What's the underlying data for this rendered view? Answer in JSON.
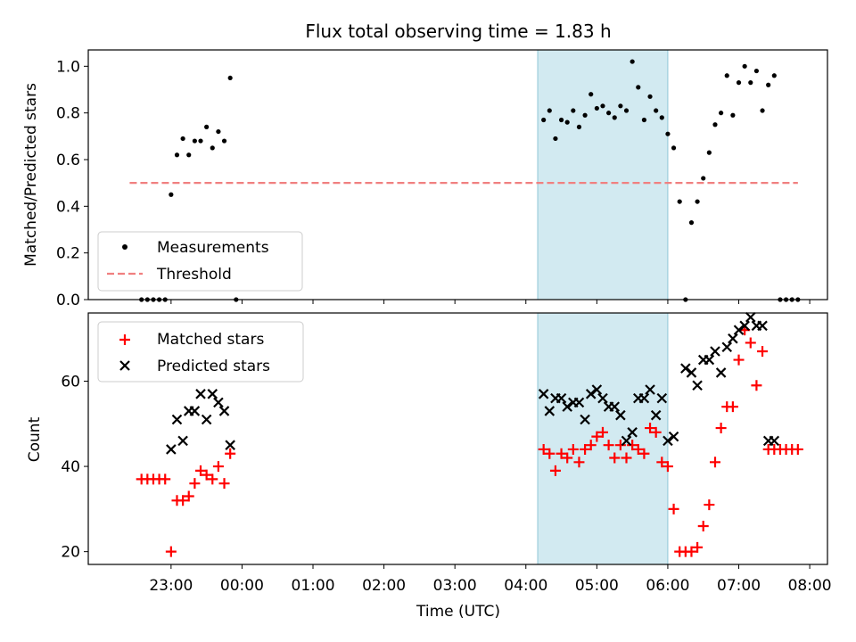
{
  "chart_data": [
    {
      "type": "scatter",
      "title": "Flux total observing time = 1.83 h",
      "ylabel": "Matched/Predicted stars",
      "xlabel": "",
      "ylim": [
        0,
        1.07
      ],
      "yticks": [
        0.0,
        0.2,
        0.4,
        0.6,
        0.8,
        1.0
      ],
      "ytick_labels": [
        "0.0",
        "0.2",
        "0.4",
        "0.6",
        "0.8",
        "1.0"
      ],
      "legend_position": "lower-left",
      "highlight_span": {
        "start": "04:10",
        "end": "06:00",
        "color": "#add8e6"
      },
      "threshold": {
        "name": "Threshold",
        "value": 0.5,
        "x_start": "22:25",
        "x_end": "07:50",
        "color": "#f08080",
        "style": "dashed"
      },
      "series": [
        {
          "name": "Measurements",
          "color": "#000000",
          "x": [
            "22:35",
            "22:40",
            "22:45",
            "22:50",
            "22:55",
            "23:00",
            "23:05",
            "23:10",
            "23:15",
            "23:20",
            "23:25",
            "23:30",
            "23:35",
            "23:40",
            "23:45",
            "23:50",
            "23:55",
            "04:15",
            "04:20",
            "04:25",
            "04:30",
            "04:35",
            "04:40",
            "04:45",
            "04:50",
            "04:55",
            "05:00",
            "05:05",
            "05:10",
            "05:15",
            "05:20",
            "05:25",
            "05:30",
            "05:35",
            "05:40",
            "05:45",
            "05:50",
            "05:55",
            "06:00",
            "06:05",
            "06:10",
            "06:15",
            "06:20",
            "06:25",
            "06:30",
            "06:35",
            "06:40",
            "06:45",
            "06:50",
            "06:55",
            "07:00",
            "07:05",
            "07:10",
            "07:15",
            "07:20",
            "07:25",
            "07:30",
            "07:35",
            "07:40",
            "07:45",
            "07:50"
          ],
          "y": [
            0,
            0,
            0,
            0,
            0,
            0.45,
            0.62,
            0.69,
            0.62,
            0.68,
            0.68,
            0.74,
            0.65,
            0.72,
            0.68,
            0.95,
            0,
            0.77,
            0.81,
            0.69,
            0.77,
            0.76,
            0.81,
            0.74,
            0.79,
            0.88,
            0.82,
            0.83,
            0.8,
            0.78,
            0.83,
            0.81,
            1.02,
            0.91,
            0.77,
            0.87,
            0.81,
            0.78,
            0.71,
            0.65,
            0.42,
            0,
            0.33,
            0.42,
            0.52,
            0.63,
            0.75,
            0.8,
            0.96,
            0.79,
            0.93,
            1.0,
            0.93,
            0.98,
            0.81,
            0.92,
            0.96,
            0,
            0,
            0,
            0
          ]
        }
      ]
    },
    {
      "type": "scatter",
      "title": "",
      "xlabel": "Time (UTC)",
      "ylabel": "Count",
      "ylim": [
        17,
        76
      ],
      "yticks": [
        20,
        40,
        60
      ],
      "ytick_labels": [
        "20",
        "40",
        "60"
      ],
      "x_range": [
        "21:50",
        "08:15"
      ],
      "xtick_labels": [
        "23:00",
        "00:00",
        "01:00",
        "02:00",
        "03:00",
        "04:00",
        "05:00",
        "06:00",
        "07:00",
        "08:00"
      ],
      "legend_position": "upper-left",
      "highlight_span": {
        "start": "04:10",
        "end": "06:00",
        "color": "#add8e6"
      },
      "series": [
        {
          "name": "Matched stars",
          "color": "#ff0000",
          "marker": "plus",
          "x": [
            "22:35",
            "22:40",
            "22:45",
            "22:50",
            "22:55",
            "23:00",
            "23:05",
            "23:10",
            "23:15",
            "23:20",
            "23:25",
            "23:30",
            "23:35",
            "23:40",
            "23:45",
            "23:50",
            "04:15",
            "04:20",
            "04:25",
            "04:30",
            "04:35",
            "04:40",
            "04:45",
            "04:50",
            "04:55",
            "05:00",
            "05:05",
            "05:10",
            "05:15",
            "05:20",
            "05:25",
            "05:30",
            "05:35",
            "05:40",
            "05:45",
            "05:50",
            "05:55",
            "06:00",
            "06:05",
            "06:10",
            "06:15",
            "06:20",
            "06:25",
            "06:30",
            "06:35",
            "06:40",
            "06:45",
            "06:50",
            "06:55",
            "07:00",
            "07:05",
            "07:10",
            "07:15",
            "07:20",
            "07:25",
            "07:30",
            "07:35",
            "07:40",
            "07:45",
            "07:50"
          ],
          "y": [
            37,
            37,
            37,
            37,
            37,
            20,
            32,
            32,
            33,
            36,
            39,
            38,
            37,
            40,
            36,
            43,
            44,
            43,
            39,
            43,
            42,
            44,
            41,
            44,
            45,
            47,
            48,
            45,
            42,
            45,
            42,
            45,
            44,
            43,
            49,
            48,
            41,
            40,
            30,
            20,
            20,
            20,
            21,
            26,
            31,
            41,
            49,
            54,
            54,
            65,
            72,
            69,
            59,
            67,
            44,
            44,
            44,
            44,
            44,
            44
          ]
        },
        {
          "name": "Predicted stars",
          "color": "#000000",
          "marker": "x",
          "x": [
            "23:00",
            "23:05",
            "23:10",
            "23:15",
            "23:20",
            "23:25",
            "23:30",
            "23:35",
            "23:40",
            "23:45",
            "23:50",
            "04:15",
            "04:20",
            "04:25",
            "04:30",
            "04:35",
            "04:40",
            "04:45",
            "04:50",
            "04:55",
            "05:00",
            "05:05",
            "05:10",
            "05:15",
            "05:20",
            "05:25",
            "05:30",
            "05:35",
            "05:40",
            "05:45",
            "05:50",
            "05:55",
            "06:00",
            "06:05",
            "06:15",
            "06:20",
            "06:25",
            "06:30",
            "06:35",
            "06:40",
            "06:45",
            "06:50",
            "06:55",
            "07:00",
            "07:05",
            "07:10",
            "07:15",
            "07:20",
            "07:25",
            "07:30"
          ],
          "y": [
            44,
            51,
            46,
            53,
            53,
            57,
            51,
            57,
            55,
            53,
            45,
            57,
            53,
            56,
            56,
            54,
            55,
            55,
            51,
            57,
            58,
            56,
            54,
            54,
            52,
            46,
            48,
            56,
            56,
            58,
            52,
            56,
            46,
            47,
            63,
            62,
            59,
            65,
            65,
            67,
            62,
            68,
            70,
            72,
            73,
            75,
            73,
            73,
            46,
            46
          ]
        }
      ]
    }
  ]
}
